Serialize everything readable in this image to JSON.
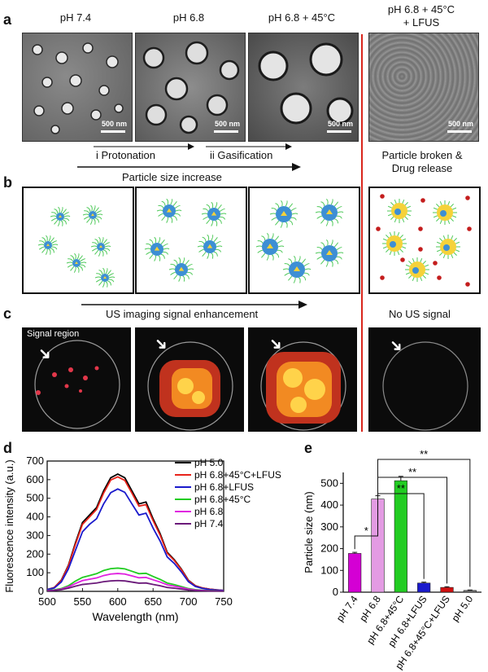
{
  "panels": {
    "a": "a",
    "b": "b",
    "c": "c",
    "d": "d",
    "e": "e"
  },
  "headers": [
    "pH 7.4",
    "pH 6.8",
    "pH 6.8 + 45°C",
    "pH 6.8 + 45°C\n+ LFUS"
  ],
  "scale_bar": "500 nm",
  "process": {
    "step1": "i Protonation",
    "step2": "ii Gasification",
    "size_increase": "Particle size increase",
    "broken": "Particle broken &\nDrug release",
    "us_enhance": "US imaging signal enhancement",
    "no_signal": "No US signal",
    "signal_region": "Signal region"
  },
  "colors": {
    "divider": "#d9261c",
    "nanoparticle": "#3d8fd4",
    "drug": "#f5d23a"
  },
  "chart_data": [
    {
      "type": "line",
      "title": "",
      "xlabel": "Wavelength (nm)",
      "ylabel": "Fluorescence intensity (a.u.)",
      "xlim": [
        500,
        750
      ],
      "ylim": [
        0,
        700
      ],
      "xticks": [
        500,
        550,
        600,
        650,
        700,
        750
      ],
      "yticks": [
        0,
        100,
        200,
        300,
        400,
        500,
        600,
        700
      ],
      "legend": "top-right",
      "x": [
        500,
        510,
        520,
        530,
        540,
        550,
        560,
        570,
        580,
        590,
        600,
        610,
        620,
        630,
        640,
        650,
        660,
        670,
        680,
        690,
        700,
        710,
        720,
        730,
        740,
        750
      ],
      "series": [
        {
          "name": "pH 5.0",
          "color": "#000000",
          "values": [
            10,
            20,
            60,
            140,
            260,
            370,
            410,
            450,
            540,
            610,
            630,
            610,
            540,
            470,
            480,
            390,
            310,
            210,
            170,
            120,
            60,
            30,
            18,
            12,
            8,
            5
          ]
        },
        {
          "name": "pH 6.8+45°C+LFUS",
          "color": "#e8231b",
          "values": [
            10,
            20,
            58,
            136,
            252,
            360,
            400,
            440,
            528,
            598,
            615,
            596,
            528,
            458,
            466,
            380,
            302,
            205,
            166,
            117,
            58,
            29,
            18,
            12,
            8,
            5
          ]
        },
        {
          "name": "pH 6.8+LFUS",
          "color": "#1a1acc",
          "values": [
            10,
            18,
            50,
            120,
            220,
            320,
            360,
            390,
            470,
            530,
            550,
            532,
            470,
            410,
            420,
            340,
            270,
            185,
            150,
            105,
            52,
            26,
            16,
            10,
            7,
            5
          ]
        },
        {
          "name": "pH 6.8+45°C",
          "color": "#22cc22",
          "values": [
            5,
            8,
            15,
            30,
            55,
            75,
            85,
            95,
            112,
            122,
            125,
            121,
            108,
            95,
            97,
            80,
            64,
            45,
            36,
            26,
            15,
            9,
            6,
            4,
            3,
            2
          ]
        },
        {
          "name": "pH 6.8",
          "color": "#e020e0",
          "values": [
            4,
            6,
            12,
            24,
            42,
            58,
            65,
            72,
            85,
            93,
            96,
            93,
            83,
            73,
            75,
            62,
            50,
            35,
            28,
            20,
            12,
            7,
            5,
            3,
            2,
            2
          ]
        },
        {
          "name": "pH 7.4",
          "color": "#6b1a7a",
          "values": [
            3,
            5,
            9,
            17,
            28,
            37,
            41,
            45,
            52,
            56,
            58,
            56,
            50,
            44,
            45,
            37,
            30,
            21,
            17,
            12,
            7,
            4,
            3,
            2,
            2,
            1
          ]
        }
      ]
    },
    {
      "type": "bar",
      "title": "",
      "xlabel": "",
      "ylabel": "Particle size (nm)",
      "ylim": [
        0,
        550
      ],
      "yticks": [
        0,
        100,
        200,
        300,
        400,
        500
      ],
      "categories": [
        "pH 7.4",
        "pH 6.8",
        "pH 6.8+45°C",
        "pH 6.8+LFUS",
        "pH 6.8+45°C+LFUS",
        "pH 5.0"
      ],
      "values": [
        178,
        428,
        512,
        42,
        22,
        8
      ],
      "errors": [
        5,
        15,
        20,
        4,
        3,
        2
      ],
      "colors": [
        "#d400d4",
        "#e39be3",
        "#22cc22",
        "#1a1acc",
        "#d11010",
        "#777777"
      ],
      "significance": [
        "*",
        "**",
        "**",
        "**"
      ]
    }
  ]
}
